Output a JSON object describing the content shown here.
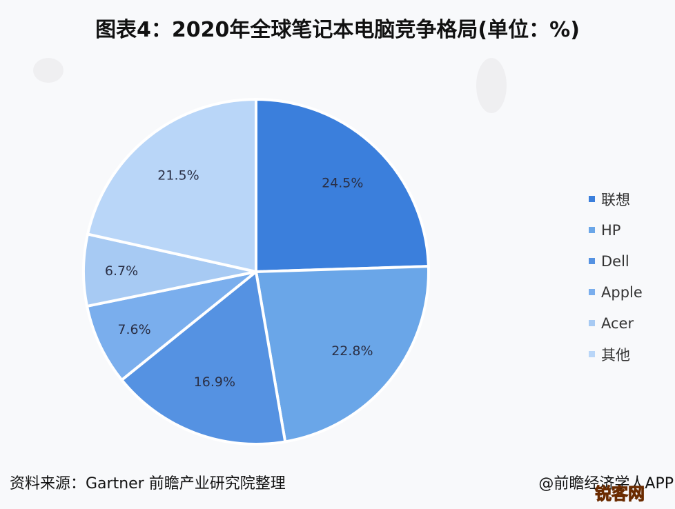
{
  "title": "图表4：2020年全球笔记本电脑竞争格局(单位：%)",
  "source": "资料来源：Gartner 前瞻产业研究院整理",
  "credit": "@前瞻经济学人APP",
  "stamp": "锐客网",
  "legend": [
    {
      "label": "联想",
      "color": "#3b7fdc"
    },
    {
      "label": "HP",
      "color": "#6aa6e8"
    },
    {
      "label": "Dell",
      "color": "#5592e2"
    },
    {
      "label": "Apple",
      "color": "#7aaeed"
    },
    {
      "label": "Acer",
      "color": "#a7caf3"
    },
    {
      "label": "其他",
      "color": "#b9d6f8"
    }
  ],
  "chart_data": {
    "type": "pie",
    "title": "图表4：2020年全球笔记本电脑竞争格局(单位：%)",
    "categories": [
      "联想",
      "HP",
      "Dell",
      "Apple",
      "Acer",
      "其他"
    ],
    "values": [
      24.5,
      22.8,
      16.9,
      7.6,
      6.7,
      21.5
    ],
    "labels": [
      "24.5%",
      "22.8%",
      "16.9%",
      "7.6%",
      "6.7%",
      "21.5%"
    ],
    "colors": [
      "#3b7fdc",
      "#6aa6e8",
      "#5592e2",
      "#7aaeed",
      "#a7caf3",
      "#b9d6f8"
    ],
    "start_angle": "12 o'clock",
    "direction": "clockwise",
    "legend_position": "right",
    "unit": "%"
  }
}
